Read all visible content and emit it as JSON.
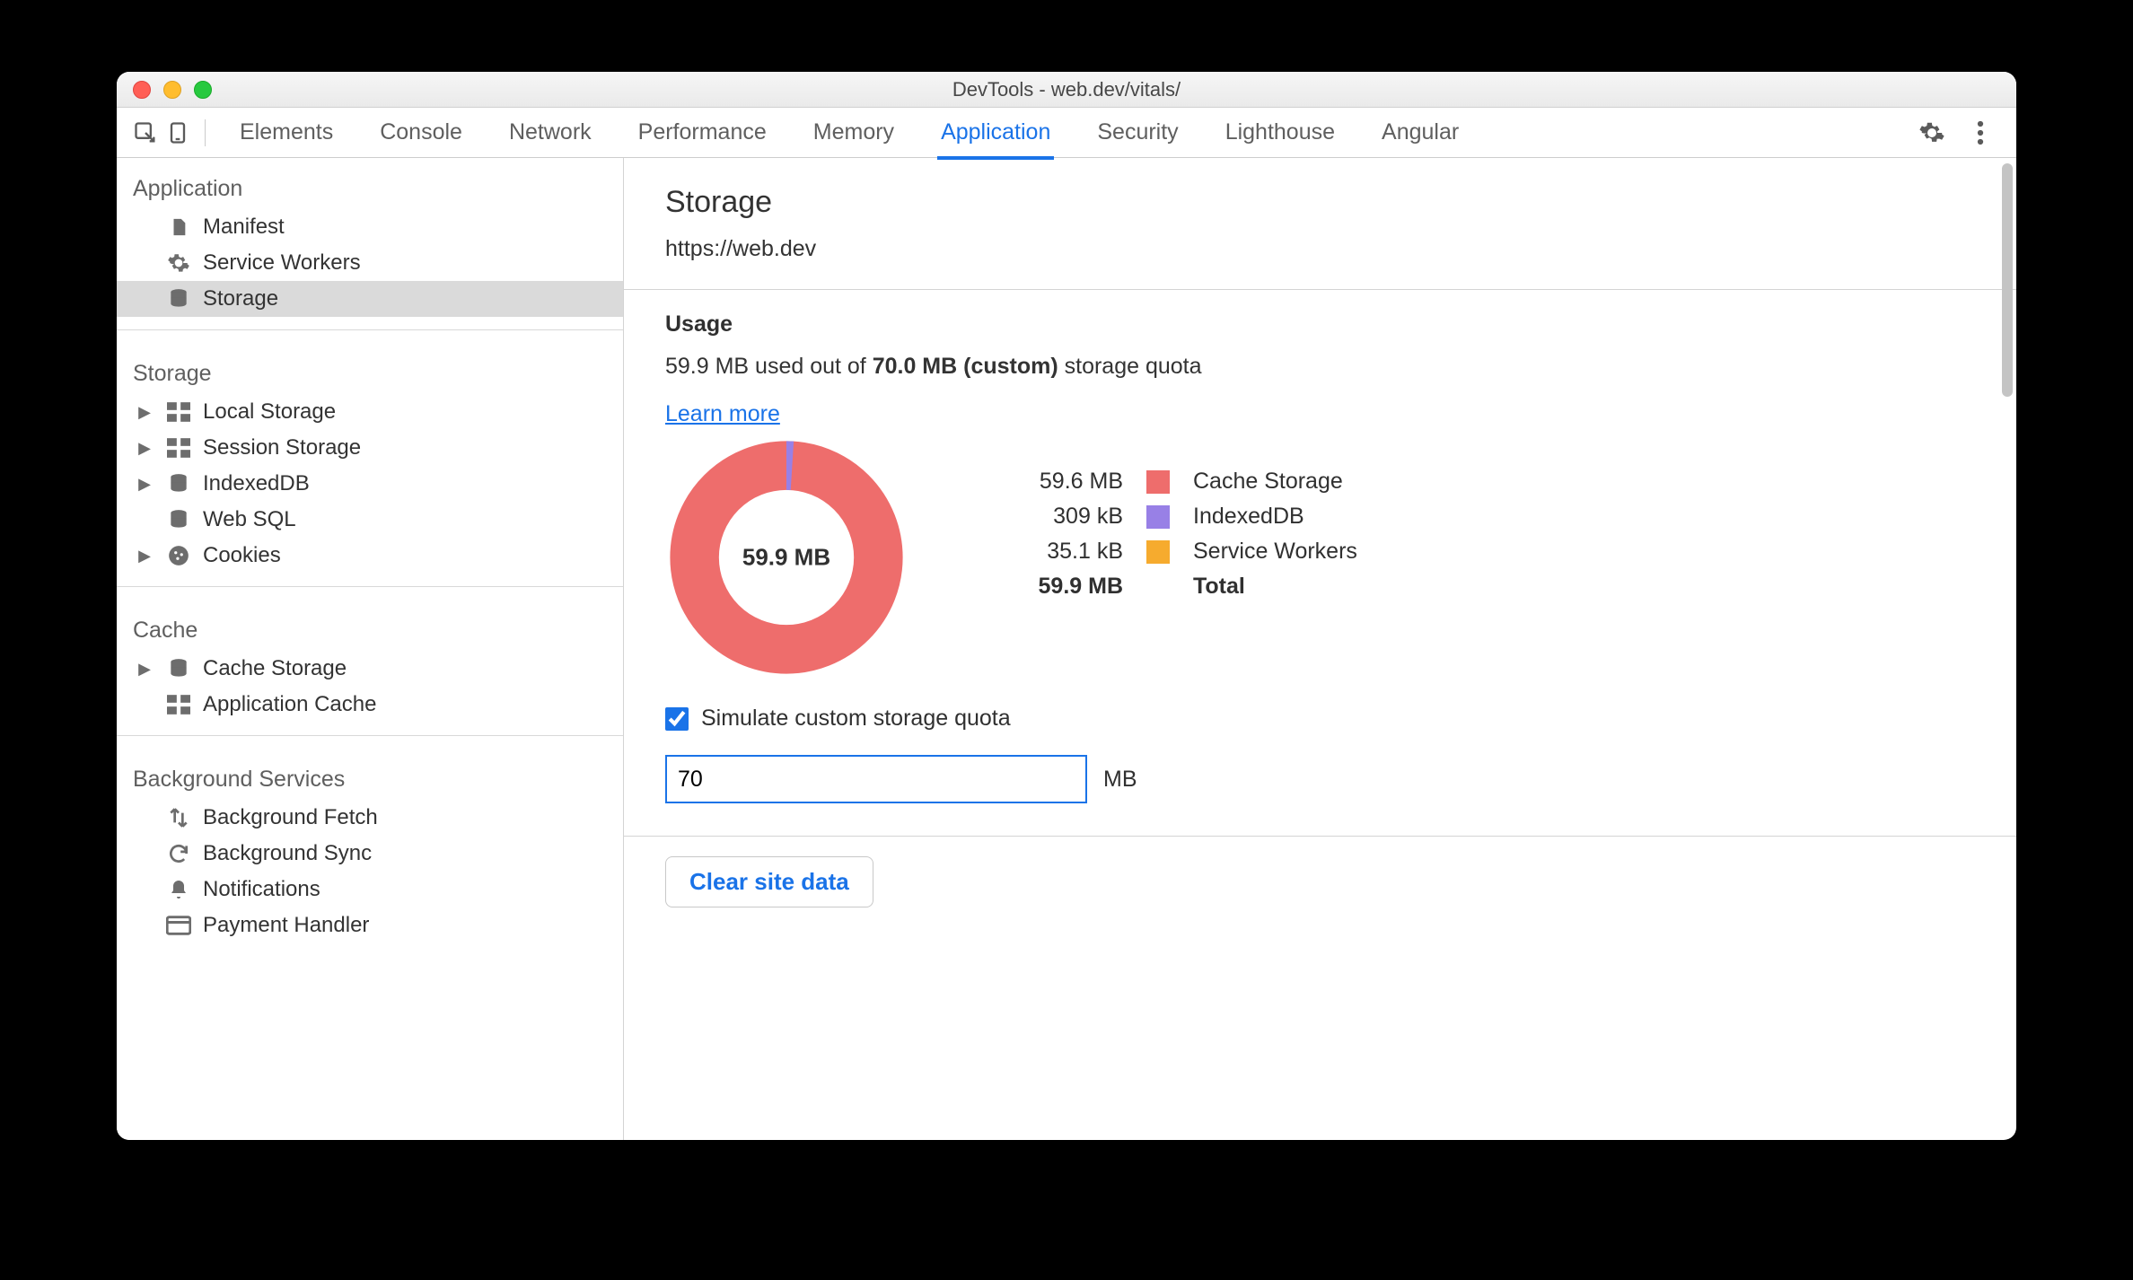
{
  "window": {
    "title": "DevTools - web.dev/vitals/"
  },
  "toolbar": {
    "tabs": [
      "Elements",
      "Console",
      "Network",
      "Performance",
      "Memory",
      "Application",
      "Security",
      "Lighthouse",
      "Angular"
    ],
    "active_index": 5
  },
  "sidebar": {
    "sections": [
      {
        "title": "Application",
        "items": [
          {
            "label": "Manifest",
            "icon": "file",
            "expandable": false,
            "selected": false
          },
          {
            "label": "Service Workers",
            "icon": "gear",
            "expandable": false,
            "selected": false
          },
          {
            "label": "Storage",
            "icon": "database",
            "expandable": false,
            "selected": true
          }
        ]
      },
      {
        "title": "Storage",
        "items": [
          {
            "label": "Local Storage",
            "icon": "grid",
            "expandable": true
          },
          {
            "label": "Session Storage",
            "icon": "grid",
            "expandable": true
          },
          {
            "label": "IndexedDB",
            "icon": "database",
            "expandable": true
          },
          {
            "label": "Web SQL",
            "icon": "database",
            "expandable": false
          },
          {
            "label": "Cookies",
            "icon": "cookie",
            "expandable": true
          }
        ]
      },
      {
        "title": "Cache",
        "items": [
          {
            "label": "Cache Storage",
            "icon": "database",
            "expandable": true
          },
          {
            "label": "Application Cache",
            "icon": "grid",
            "expandable": false
          }
        ]
      },
      {
        "title": "Background Services",
        "items": [
          {
            "label": "Background Fetch",
            "icon": "transfer",
            "expandable": false
          },
          {
            "label": "Background Sync",
            "icon": "sync",
            "expandable": false
          },
          {
            "label": "Notifications",
            "icon": "bell",
            "expandable": false
          },
          {
            "label": "Payment Handler",
            "icon": "card",
            "expandable": false
          }
        ]
      }
    ]
  },
  "main": {
    "heading": "Storage",
    "url": "https://web.dev",
    "usage_heading": "Usage",
    "usage_text_prefix": "59.9 MB used out of ",
    "usage_text_bold": "70.0 MB (custom)",
    "usage_text_suffix": " storage quota",
    "learn_more": "Learn more",
    "donut": {
      "center_label": "59.9 MB",
      "slices": [
        {
          "fraction": 0.01,
          "color": "#9880e6"
        },
        {
          "fraction": 0.99,
          "color": "#ee6d6c"
        }
      ],
      "inner_ratio": 0.58,
      "background": "#ffffff"
    },
    "legend": [
      {
        "value": "59.6 MB",
        "color": "#ee6d6c",
        "name": "Cache Storage"
      },
      {
        "value": "309 kB",
        "color": "#9880e6",
        "name": "IndexedDB"
      },
      {
        "value": "35.1 kB",
        "color": "#f6ab2e",
        "name": "Service Workers"
      }
    ],
    "legend_total": {
      "value": "59.9 MB",
      "name": "Total"
    },
    "simulate_checkbox": {
      "checked": true,
      "label": "Simulate custom storage quota"
    },
    "quota_input": {
      "value": "70",
      "unit": "MB"
    },
    "clear_button": "Clear site data"
  },
  "colors": {
    "link": "#1a73e8",
    "border": "#d4d4d4",
    "text": "#303030"
  }
}
